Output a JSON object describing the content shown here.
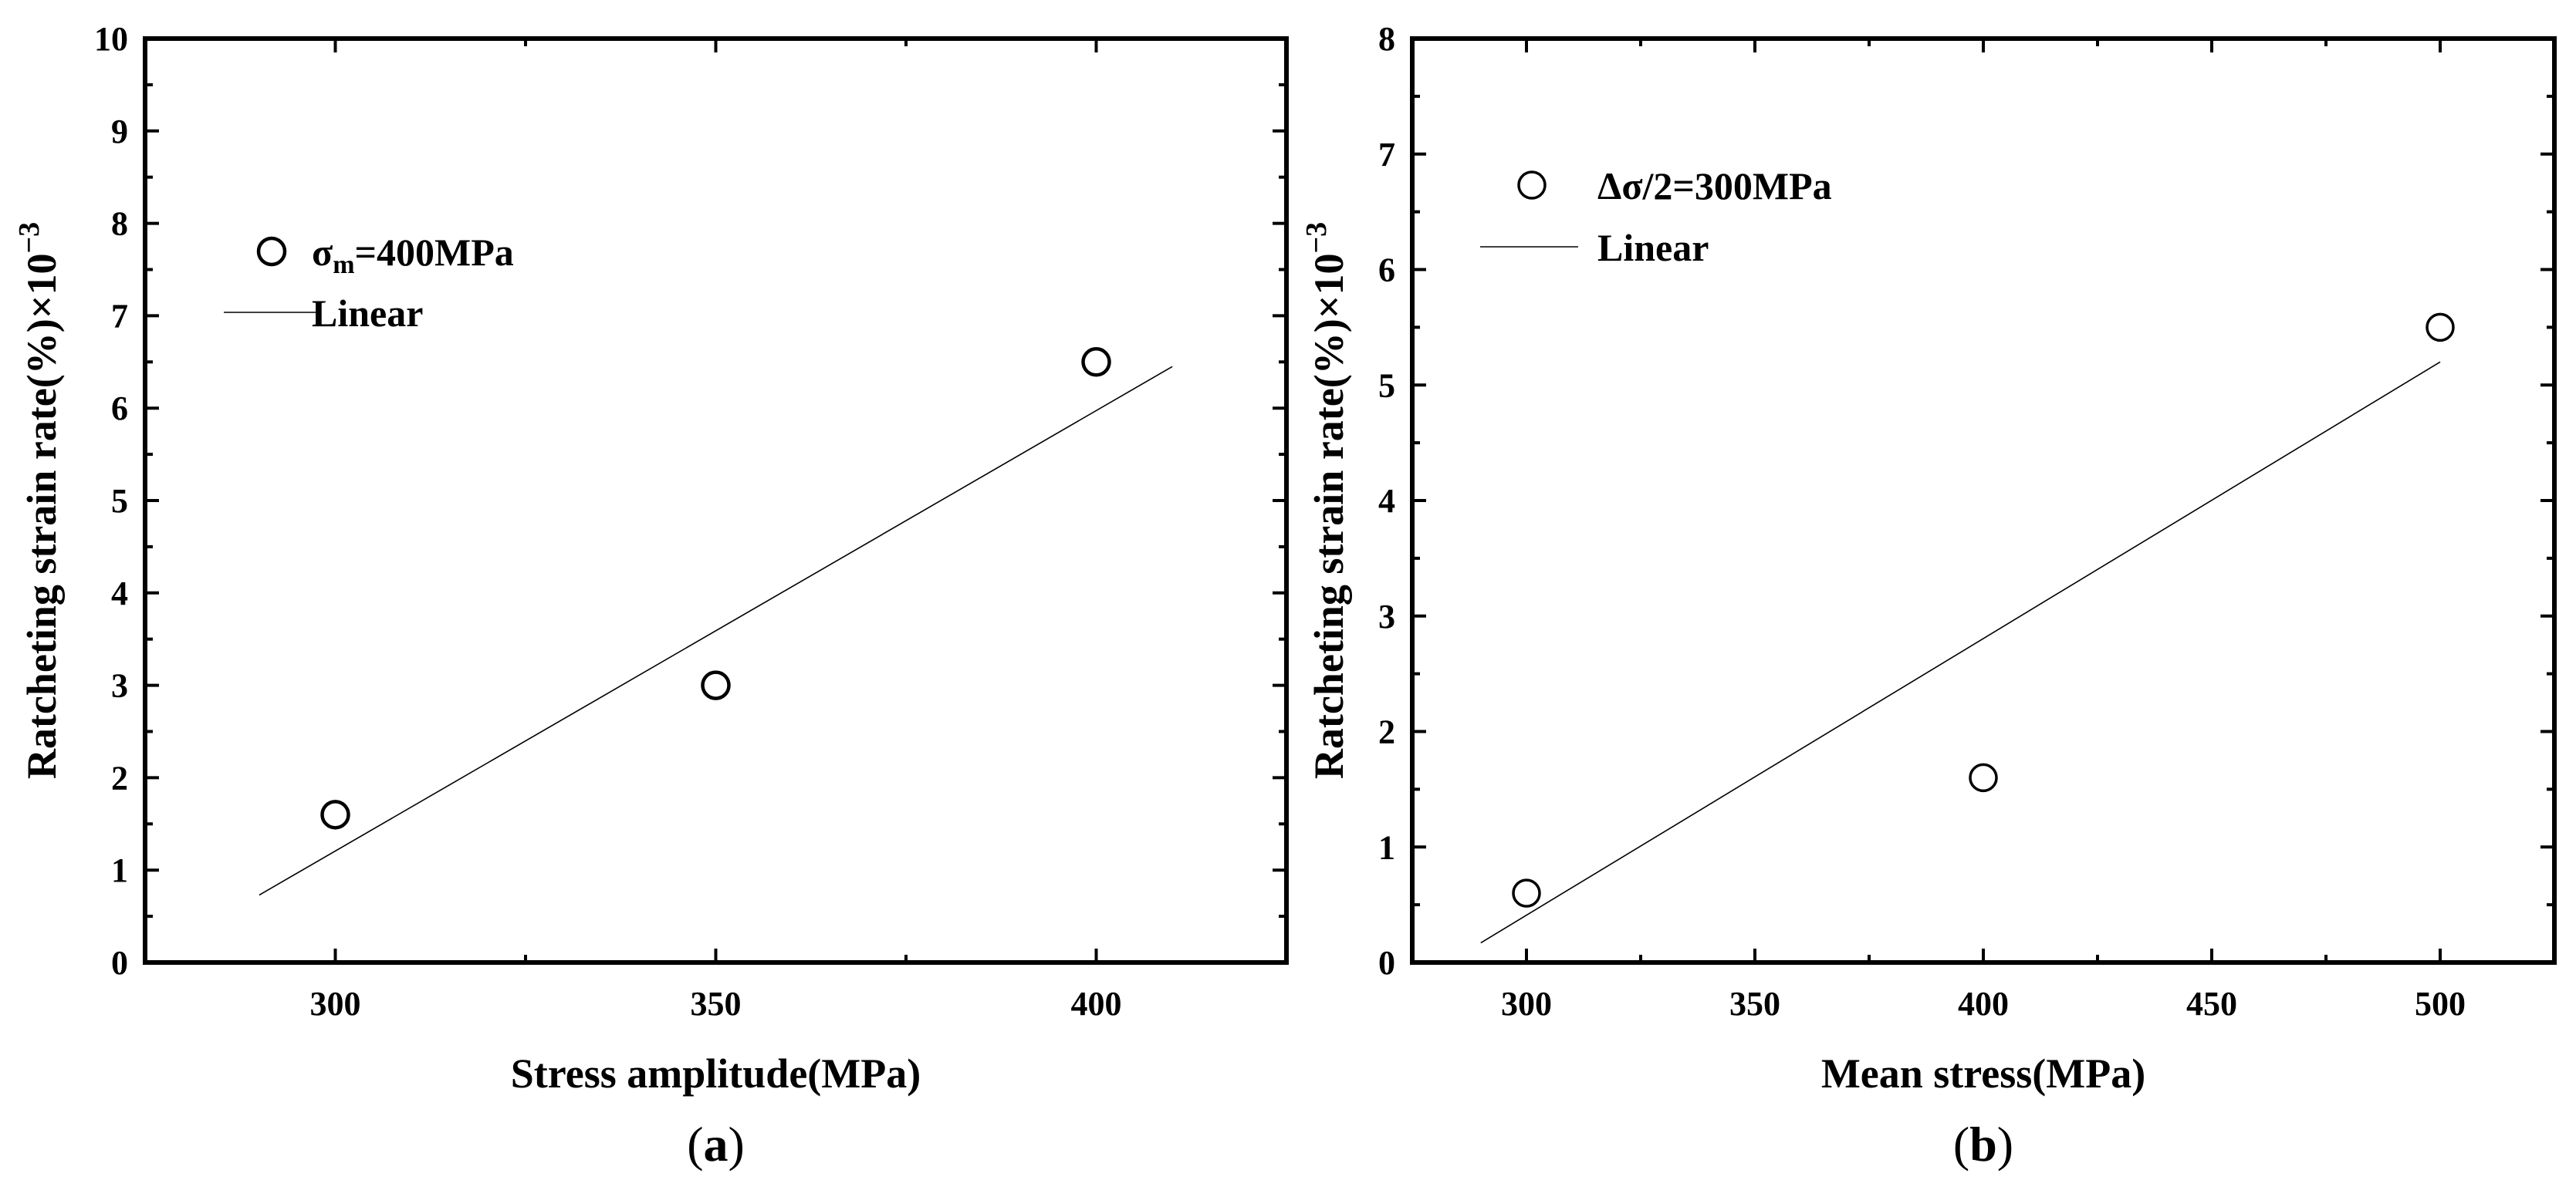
{
  "chart_data": [
    {
      "type": "scatter",
      "panel": "(a)",
      "panel_letter": "a",
      "xlabel": "Stress amplitude(MPa)",
      "ylabel": "Ratcheting strain rate(%)×10",
      "ylabel_exponent": "−3",
      "xlim": [
        275,
        425
      ],
      "ylim": [
        0,
        10
      ],
      "xticks": [
        300,
        350,
        400
      ],
      "xminor": [
        325,
        375
      ],
      "yticks": [
        0,
        1,
        2,
        3,
        4,
        5,
        6,
        7,
        8,
        9,
        10
      ],
      "series": [
        {
          "name": "σm=400MPa",
          "legend_main": "σ",
          "legend_sub": "m",
          "legend_rest": "=400MPa",
          "marker": "circle",
          "x": [
            300,
            350,
            400
          ],
          "y": [
            1.6,
            3.0,
            6.5
          ]
        },
        {
          "name": "Linear",
          "line": true,
          "x": [
            290,
            410
          ],
          "y": [
            0.73,
            6.45
          ]
        }
      ]
    },
    {
      "type": "scatter",
      "panel": "(b)",
      "panel_letter": "b",
      "xlabel": "Mean stress(MPa)",
      "ylabel": "Ratcheting strain rate(%)×10",
      "ylabel_exponent": "−3",
      "xlim": [
        275,
        525
      ],
      "ylim": [
        0,
        8
      ],
      "xticks": [
        300,
        350,
        400,
        450,
        500
      ],
      "xminor": [
        325,
        375,
        425,
        475
      ],
      "yticks": [
        0,
        1,
        2,
        3,
        4,
        5,
        6,
        7,
        8
      ],
      "series": [
        {
          "name": "Δσ/2=300MPa",
          "legend_main": "Δσ/2=300MPa",
          "legend_sub": "",
          "legend_rest": "",
          "marker": "circle",
          "x": [
            300,
            400,
            500
          ],
          "y": [
            0.6,
            1.6,
            5.5
          ]
        },
        {
          "name": "Linear",
          "line": true,
          "x": [
            290,
            500
          ],
          "y": [
            0.17,
            5.2
          ]
        }
      ]
    }
  ]
}
